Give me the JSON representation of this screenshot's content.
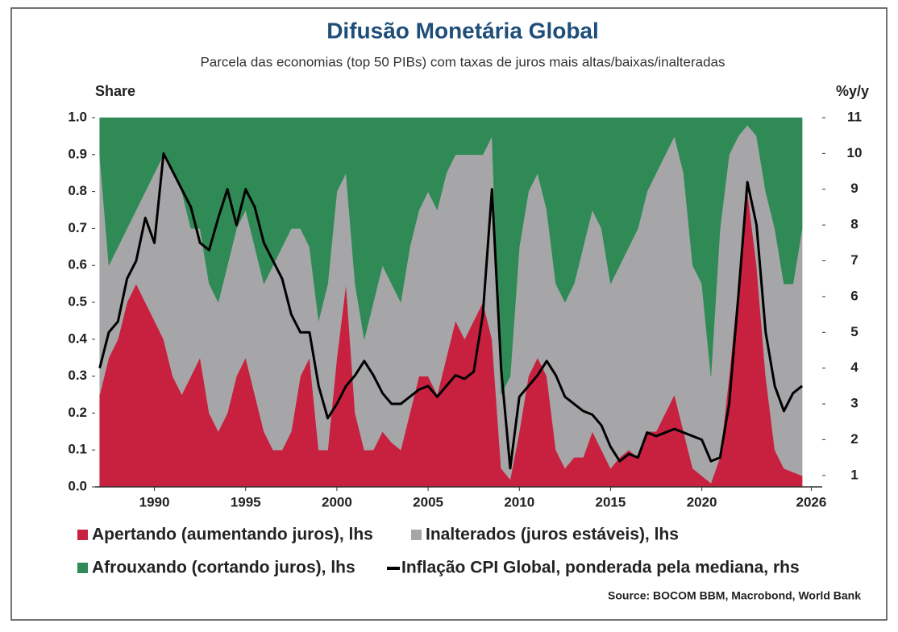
{
  "chart_data": {
    "type": "stacked-area-line",
    "title": "Difusão Monetária Global",
    "subtitle": "Parcela das economias (top 50 PIBs) com taxas de juros mais altas/baixas/inalteradas",
    "y_label": "Share",
    "y2_label": "%y/y",
    "source": "Source: BOCOM BBM, Macrobond, World Bank",
    "x": [
      1987,
      1987.5,
      1988,
      1988.5,
      1989,
      1989.5,
      1990,
      1990.5,
      1991,
      1991.5,
      1992,
      1992.5,
      1993,
      1993.5,
      1994,
      1994.5,
      1995,
      1995.5,
      1996,
      1996.5,
      1997,
      1997.5,
      1998,
      1998.5,
      1999,
      1999.5,
      2000,
      2000.5,
      2001,
      2001.5,
      2002,
      2002.5,
      2003,
      2003.5,
      2004,
      2004.5,
      2005,
      2005.5,
      2006,
      2006.5,
      2007,
      2007.5,
      2008,
      2008.5,
      2009,
      2009.5,
      2010,
      2010.5,
      2011,
      2011.5,
      2012,
      2012.5,
      2013,
      2013.5,
      2014,
      2014.5,
      2015,
      2015.5,
      2016,
      2016.5,
      2017,
      2017.5,
      2018,
      2018.5,
      2019,
      2019.5,
      2020,
      2020.5,
      2021,
      2021.5,
      2022,
      2022.5,
      2023,
      2023.5,
      2024,
      2024.5,
      2025,
      2025.5
    ],
    "series": [
      {
        "name": "Apertando (aumentando juros), lhs",
        "color": "#c8203f",
        "values": [
          0.25,
          0.35,
          0.4,
          0.5,
          0.55,
          0.5,
          0.45,
          0.4,
          0.3,
          0.25,
          0.3,
          0.35,
          0.2,
          0.15,
          0.2,
          0.3,
          0.35,
          0.25,
          0.15,
          0.1,
          0.1,
          0.15,
          0.3,
          0.35,
          0.1,
          0.1,
          0.35,
          0.55,
          0.2,
          0.1,
          0.1,
          0.15,
          0.12,
          0.1,
          0.2,
          0.3,
          0.3,
          0.25,
          0.35,
          0.45,
          0.4,
          0.45,
          0.5,
          0.4,
          0.05,
          0.02,
          0.15,
          0.3,
          0.35,
          0.3,
          0.1,
          0.05,
          0.08,
          0.08,
          0.15,
          0.1,
          0.05,
          0.08,
          0.1,
          0.08,
          0.15,
          0.15,
          0.2,
          0.25,
          0.15,
          0.05,
          0.03,
          0.01,
          0.08,
          0.3,
          0.55,
          0.8,
          0.6,
          0.3,
          0.1,
          0.05,
          0.04,
          0.03
        ]
      },
      {
        "name": "Inalterados (juros estáveis), lhs",
        "color": "#a6a6a9",
        "values": [
          0.65,
          0.25,
          0.25,
          0.2,
          0.2,
          0.3,
          0.4,
          0.5,
          0.55,
          0.55,
          0.4,
          0.35,
          0.35,
          0.35,
          0.4,
          0.4,
          0.4,
          0.4,
          0.4,
          0.5,
          0.55,
          0.55,
          0.4,
          0.3,
          0.35,
          0.45,
          0.45,
          0.3,
          0.35,
          0.3,
          0.4,
          0.45,
          0.43,
          0.4,
          0.45,
          0.45,
          0.5,
          0.5,
          0.5,
          0.45,
          0.5,
          0.45,
          0.4,
          0.55,
          0.2,
          0.28,
          0.5,
          0.5,
          0.5,
          0.45,
          0.45,
          0.45,
          0.47,
          0.57,
          0.6,
          0.6,
          0.5,
          0.52,
          0.55,
          0.62,
          0.65,
          0.7,
          0.7,
          0.7,
          0.7,
          0.55,
          0.52,
          0.29,
          0.62,
          0.6,
          0.4,
          0.18,
          0.35,
          0.5,
          0.6,
          0.5,
          0.51,
          0.67
        ]
      },
      {
        "name": "Afrouxando (cortando juros), lhs",
        "color": "#2f8a55",
        "values": [
          0.1,
          0.4,
          0.35,
          0.3,
          0.25,
          0.2,
          0.15,
          0.1,
          0.15,
          0.2,
          0.3,
          0.3,
          0.45,
          0.5,
          0.4,
          0.3,
          0.25,
          0.35,
          0.45,
          0.4,
          0.35,
          0.3,
          0.3,
          0.35,
          0.55,
          0.45,
          0.2,
          0.15,
          0.45,
          0.6,
          0.5,
          0.4,
          0.45,
          0.5,
          0.35,
          0.25,
          0.2,
          0.25,
          0.15,
          0.1,
          0.1,
          0.1,
          0.1,
          0.05,
          0.75,
          0.7,
          0.35,
          0.2,
          0.15,
          0.25,
          0.45,
          0.5,
          0.45,
          0.35,
          0.25,
          0.3,
          0.45,
          0.4,
          0.35,
          0.3,
          0.2,
          0.15,
          0.1,
          0.05,
          0.15,
          0.4,
          0.45,
          0.7,
          0.3,
          0.1,
          0.05,
          0.02,
          0.05,
          0.2,
          0.3,
          0.45,
          0.45,
          0.3
        ]
      },
      {
        "name": "Inflação CPI Global, ponderada pela mediana, rhs",
        "color": "#000000",
        "axis": "y2",
        "values": [
          4.0,
          5.0,
          5.3,
          6.5,
          7.0,
          8.2,
          7.5,
          10.0,
          9.5,
          9.0,
          8.5,
          7.5,
          7.3,
          8.2,
          9.0,
          8.0,
          9.0,
          8.5,
          7.5,
          7.0,
          6.5,
          5.5,
          5.0,
          5.0,
          3.5,
          2.6,
          3.0,
          3.5,
          3.8,
          4.2,
          3.8,
          3.3,
          3.0,
          3.0,
          3.2,
          3.4,
          3.5,
          3.2,
          3.5,
          3.8,
          3.7,
          3.9,
          5.5,
          9.0,
          4.0,
          1.2,
          3.2,
          3.5,
          3.8,
          4.2,
          3.8,
          3.2,
          3.0,
          2.8,
          2.7,
          2.4,
          1.8,
          1.4,
          1.6,
          1.5,
          2.2,
          2.1,
          2.2,
          2.3,
          2.2,
          2.1,
          2.0,
          1.4,
          1.5,
          3.0,
          6.0,
          9.2,
          8.0,
          5.0,
          3.5,
          2.8,
          3.3,
          3.5
        ]
      }
    ],
    "xlim": [
      1986.75,
      2026.6
    ],
    "xticks": [
      1990,
      1995,
      2000,
      2005,
      2010,
      2015,
      2020,
      2026
    ],
    "ylim": [
      0,
      1
    ],
    "yticks": [
      {
        "value": 0,
        "label": "0.0"
      },
      {
        "value": 0.1,
        "label": "0.1"
      },
      {
        "value": 0.2,
        "label": "0.2"
      },
      {
        "value": 0.3,
        "label": "0.3"
      },
      {
        "value": 0.4,
        "label": "0.4"
      },
      {
        "value": 0.5,
        "label": "0.5"
      },
      {
        "value": 0.6,
        "label": "0.6"
      },
      {
        "value": 0.7,
        "label": "0.7"
      },
      {
        "value": 0.8,
        "label": "0.8"
      },
      {
        "value": 0.9,
        "label": "0.9"
      },
      {
        "value": 1,
        "label": "1.0"
      }
    ],
    "y2lim": [
      0.68,
      11
    ],
    "y2ticks": [
      1,
      2,
      3,
      4,
      5,
      6,
      7,
      8,
      9,
      10,
      11
    ]
  }
}
